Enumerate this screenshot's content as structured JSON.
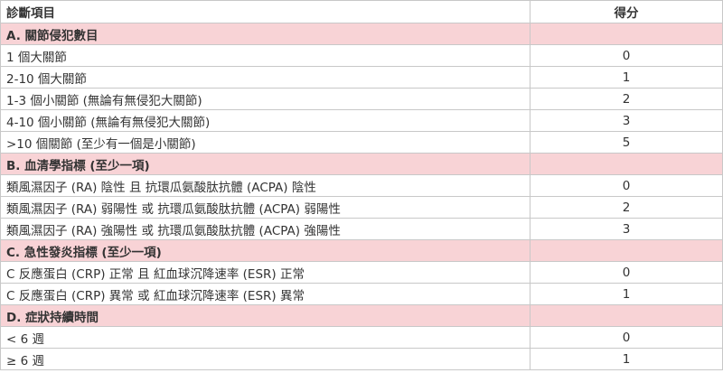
{
  "table": {
    "header": [
      "診斷項目",
      "得分"
    ],
    "sections": [
      {
        "title": "A. 關節侵犯數目",
        "rows": [
          [
            "1 個大關節",
            0
          ],
          [
            "2-10 個大關節",
            1
          ],
          [
            "1-3 個小關節 (無論有無侵犯大關節)",
            2
          ],
          [
            "4-10 個小關節 (無論有無侵犯大關節)",
            3
          ],
          [
            ">10 個關節 (至少有一個是小關節)",
            5
          ]
        ]
      },
      {
        "title": "B. 血清學指標 (至少一項)",
        "rows": [
          [
            "類風濕因子 (RA) 陰性 且 抗環瓜氨酸肽抗體 (ACPA) 陰性",
            0
          ],
          [
            "類風濕因子 (RA) 弱陽性 或 抗環瓜氨酸肽抗體 (ACPA) 弱陽性",
            2
          ],
          [
            "類風濕因子 (RA) 強陽性 或 抗環瓜氨酸肽抗體 (ACPA) 強陽性",
            3
          ]
        ]
      },
      {
        "title": "C. 急性發炎指標 (至少一項)",
        "rows": [
          [
            "C 反應蛋白 (CRP) 正常 且 紅血球沉降速率 (ESR) 正常",
            0
          ],
          [
            "C 反應蛋白 (CRP) 異常 或 紅血球沉降速率 (ESR) 異常",
            1
          ]
        ]
      },
      {
        "title": "D. 症狀持續時間",
        "rows": [
          [
            "< 6 週",
            0
          ],
          [
            "≥ 6 週",
            1
          ]
        ]
      }
    ]
  }
}
